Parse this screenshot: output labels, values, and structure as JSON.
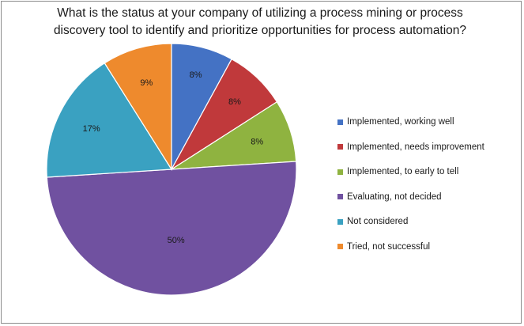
{
  "chart_data": {
    "type": "pie",
    "title_lines": [
      "What is the status at your company of utilizing a process mining or process",
      "discovery tool to identify and prioritize opportunities for process automation?"
    ],
    "slices": [
      {
        "name": "Implemented, working well",
        "value": 8,
        "label": "8%",
        "color": "#4472c4"
      },
      {
        "name": "Implemented, needs improvement",
        "value": 8,
        "label": "8%",
        "color": "#c0393b"
      },
      {
        "name": "Implemented, to early to tell",
        "value": 8,
        "label": "8%",
        "color": "#8fb340"
      },
      {
        "name": "Evaluating, not decided",
        "value": 50,
        "label": "50%",
        "color": "#7051a0"
      },
      {
        "name": "Not considered",
        "value": 17,
        "label": "17%",
        "color": "#3aa1c1"
      },
      {
        "name": "Tried, not successful",
        "value": 9,
        "label": "9%",
        "color": "#ee8a2d"
      }
    ],
    "start": "top, clockwise",
    "legend_position": "right"
  }
}
